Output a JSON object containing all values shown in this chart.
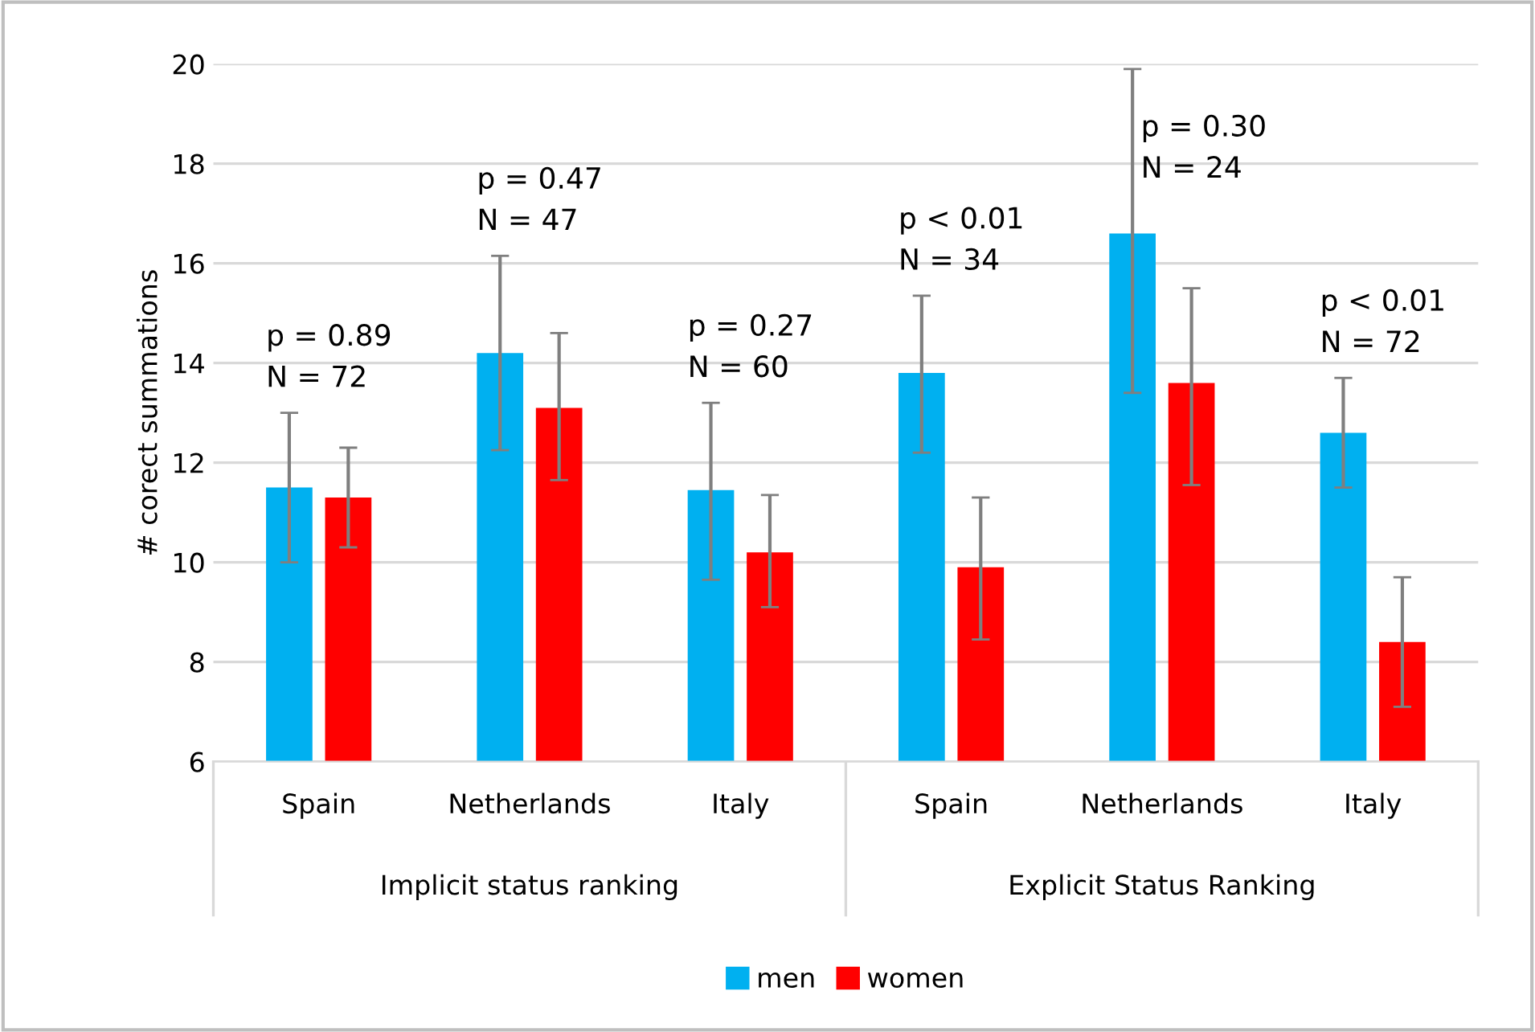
{
  "chart_data": {
    "type": "bar",
    "ylabel": "# corect summations",
    "categories": [
      "Spain",
      "Netherlands",
      "Italy",
      "Spain",
      "Netherlands",
      "Italy"
    ],
    "series": [
      {
        "name": "men",
        "color": "#00b0f0",
        "values": [
          11.5,
          14.2,
          11.45,
          13.8,
          16.6,
          12.6
        ],
        "errors": [
          [
            10.0,
            13.0
          ],
          [
            12.25,
            16.15
          ],
          [
            9.65,
            13.2
          ],
          [
            12.2,
            15.35
          ],
          [
            13.4,
            19.9
          ],
          [
            11.5,
            13.7
          ]
        ]
      },
      {
        "name": "women",
        "color": "#ff0000",
        "values": [
          11.3,
          13.1,
          10.2,
          9.9,
          13.6,
          8.4
        ],
        "errors": [
          [
            10.3,
            12.3
          ],
          [
            11.65,
            14.6
          ],
          [
            9.1,
            11.35
          ],
          [
            8.45,
            11.3
          ],
          [
            11.55,
            15.5
          ],
          [
            7.1,
            9.7
          ]
        ]
      }
    ],
    "ylim": [
      6,
      20
    ],
    "yticks": [
      6,
      8,
      10,
      12,
      14,
      16,
      18,
      20
    ],
    "grid": "y",
    "legend": "bottom",
    "annotations": [
      "p = 0.89\nN = 72",
      "p = 0.47\nN = 47",
      "p = 0.27\nN = 60",
      "p < 0.01\nN = 34",
      "p = 0.30\nN = 24",
      "p < 0.01\nN = 72",
      "Implicit status ranking",
      "Explicit Status Ranking"
    ]
  }
}
